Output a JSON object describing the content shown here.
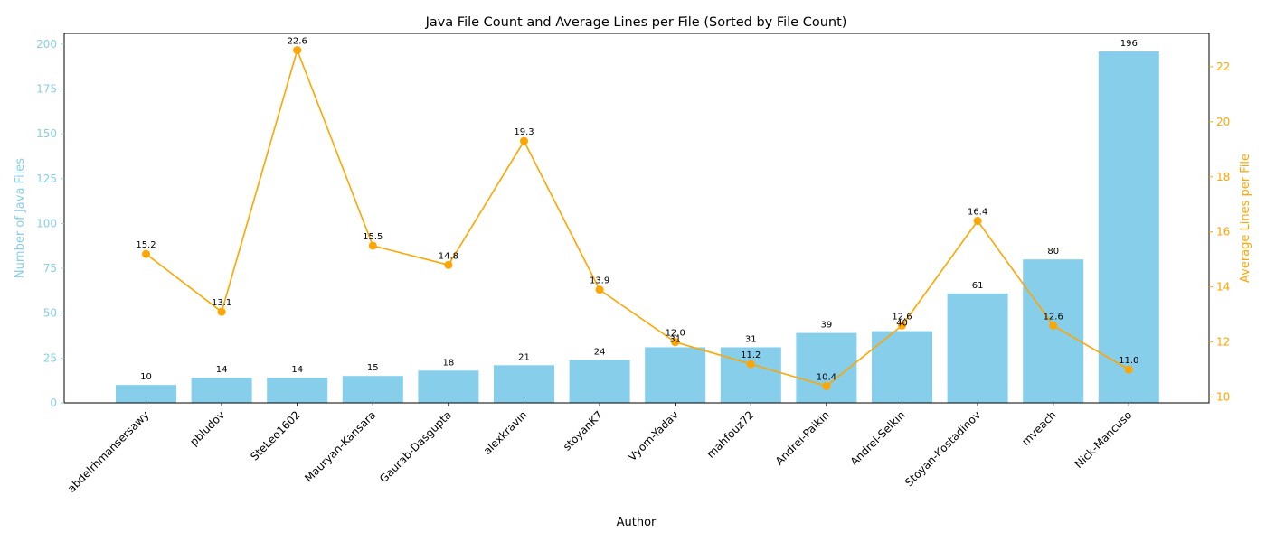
{
  "chart_data": {
    "type": "bar",
    "title": "Java File Count and Average Lines per File (Sorted by File Count)",
    "xlabel": "Author",
    "ylabel_left": "Number of Java Files",
    "ylabel_right": "Average Lines per File",
    "categories": [
      "abdelrhmansersawy",
      "pbludov",
      "SteLeo1602",
      "Mauryan-Kansara",
      "Gaurab-Dasgupta",
      "alexkravin",
      "stoyanK7",
      "Vyom-Yadav",
      "mahfouz72",
      "Andrei-Paikin",
      "Andrei-Selkin",
      "Stoyan-Kostadinov",
      "mveach",
      "Nick-Mancuso"
    ],
    "series": [
      {
        "type": "bar",
        "axis": "left",
        "color": "#87ceeb",
        "values": [
          10,
          14,
          14,
          15,
          18,
          21,
          24,
          31,
          31,
          39,
          40,
          61,
          80,
          196
        ],
        "labels": [
          "10",
          "14",
          "14",
          "15",
          "18",
          "21",
          "24",
          "31",
          "31",
          "39",
          "40",
          "61",
          "80",
          "196"
        ]
      },
      {
        "type": "line",
        "axis": "right",
        "color": "#ffa500",
        "values": [
          15.2,
          13.1,
          22.6,
          15.5,
          14.8,
          19.3,
          13.9,
          12.0,
          11.2,
          10.4,
          12.6,
          16.4,
          12.6,
          11.0
        ],
        "labels": [
          "15.2",
          "13.1",
          "22.6",
          "15.5",
          "14.8",
          "19.3",
          "13.9",
          "12.0",
          "11.2",
          "10.4",
          "12.6",
          "16.4",
          "12.6",
          "11.0"
        ]
      }
    ],
    "ylim_left": [
      0,
      206
    ],
    "yticks_left": [
      "0",
      "25",
      "50",
      "75",
      "100",
      "125",
      "150",
      "175",
      "200"
    ],
    "ylim_right": [
      9.79,
      23.21
    ],
    "yticks_right": [
      "10",
      "12",
      "14",
      "16",
      "18",
      "20",
      "22"
    ],
    "grid": false,
    "axis_colors": {
      "left": "#87ceeb",
      "right": "#ffa500",
      "frame": "#000000"
    }
  }
}
